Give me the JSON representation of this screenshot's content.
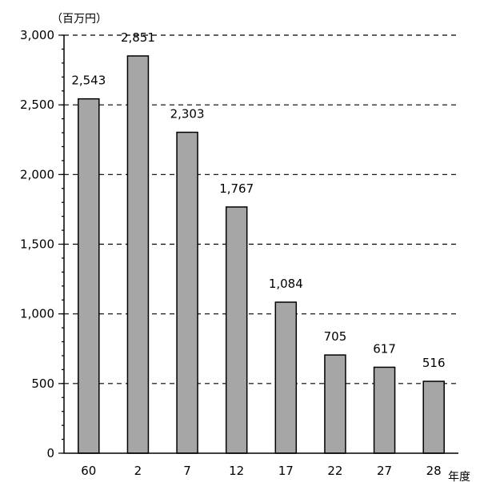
{
  "chart_data": {
    "type": "bar",
    "categories": [
      "60",
      "2",
      "7",
      "12",
      "17",
      "22",
      "27",
      "28"
    ],
    "values": [
      2543,
      2851,
      2303,
      1767,
      1084,
      705,
      617,
      516
    ],
    "data_labels": [
      "2,543",
      "2,851",
      "2,303",
      "1,767",
      "1,084",
      "705",
      "617",
      "516"
    ],
    "ylabel": "（百万円）",
    "xlabel": "年度",
    "ylim": [
      0,
      3000
    ],
    "yticks": [
      0,
      500,
      1000,
      1500,
      2000,
      2500,
      3000
    ],
    "ytick_labels": [
      "0",
      "500",
      "1,000",
      "1,500",
      "2,000",
      "2,500",
      "3,000"
    ],
    "grid": true,
    "colors": {
      "bar": "#a6a6a6",
      "bar_edge": "#000000"
    }
  }
}
